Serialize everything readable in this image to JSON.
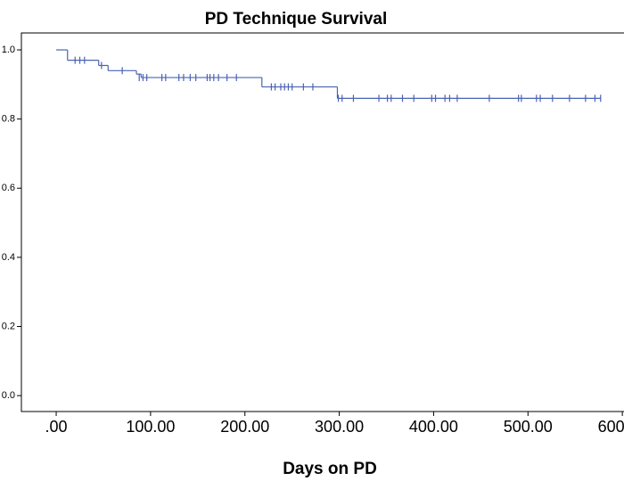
{
  "chart_data": {
    "type": "survival",
    "title": "PD Technique Survival",
    "x_label": "Days on PD",
    "color": "#4a63b4",
    "x": [
      0,
      12,
      45,
      55,
      85,
      90,
      218,
      298,
      577
    ],
    "y": [
      1.0,
      0.97,
      0.955,
      0.94,
      0.93,
      0.92,
      0.893,
      0.86,
      0.86
    ],
    "censored_x": [
      20,
      25,
      30,
      48,
      70,
      88,
      92,
      96,
      112,
      116,
      130,
      135,
      142,
      148,
      160,
      163,
      167,
      172,
      181,
      191,
      228,
      232,
      238,
      242,
      246,
      250,
      262,
      272,
      299,
      303,
      315,
      342,
      351,
      355,
      367,
      379,
      398,
      402,
      412,
      417,
      425,
      459,
      490,
      493,
      509,
      513,
      526,
      544,
      561,
      571,
      577
    ],
    "censored_y": [
      0.97,
      0.97,
      0.97,
      0.955,
      0.94,
      0.92,
      0.92,
      0.92,
      0.92,
      0.92,
      0.92,
      0.92,
      0.92,
      0.92,
      0.92,
      0.92,
      0.92,
      0.92,
      0.92,
      0.92,
      0.893,
      0.893,
      0.893,
      0.893,
      0.893,
      0.893,
      0.893,
      0.893,
      0.86,
      0.86,
      0.86,
      0.86,
      0.86,
      0.86,
      0.86,
      0.86,
      0.86,
      0.86,
      0.86,
      0.86,
      0.86,
      0.86,
      0.86,
      0.86,
      0.86,
      0.86,
      0.86,
      0.86,
      0.86,
      0.86,
      0.86
    ],
    "xlim": [
      -36.9,
      615
    ],
    "ylim": [
      -0.046,
      1.049
    ],
    "xticks": [
      {
        "value": 0,
        "label": ".00"
      },
      {
        "value": 100,
        "label": "100.00"
      },
      {
        "value": 200,
        "label": "200.00"
      },
      {
        "value": 300,
        "label": "300.00"
      },
      {
        "value": 400,
        "label": "400.00"
      },
      {
        "value": 500,
        "label": "500.00"
      },
      {
        "value": 600,
        "label": "600.00"
      }
    ],
    "yticks": [
      {
        "value": 0,
        "label": "0.0"
      },
      {
        "value": 0.2,
        "label": "0.2"
      },
      {
        "value": 0.4,
        "label": "0.4"
      },
      {
        "value": 0.6,
        "label": "0.6"
      },
      {
        "value": 0.8,
        "label": "0.8"
      },
      {
        "value": 1.0,
        "label": "1.0"
      }
    ]
  }
}
